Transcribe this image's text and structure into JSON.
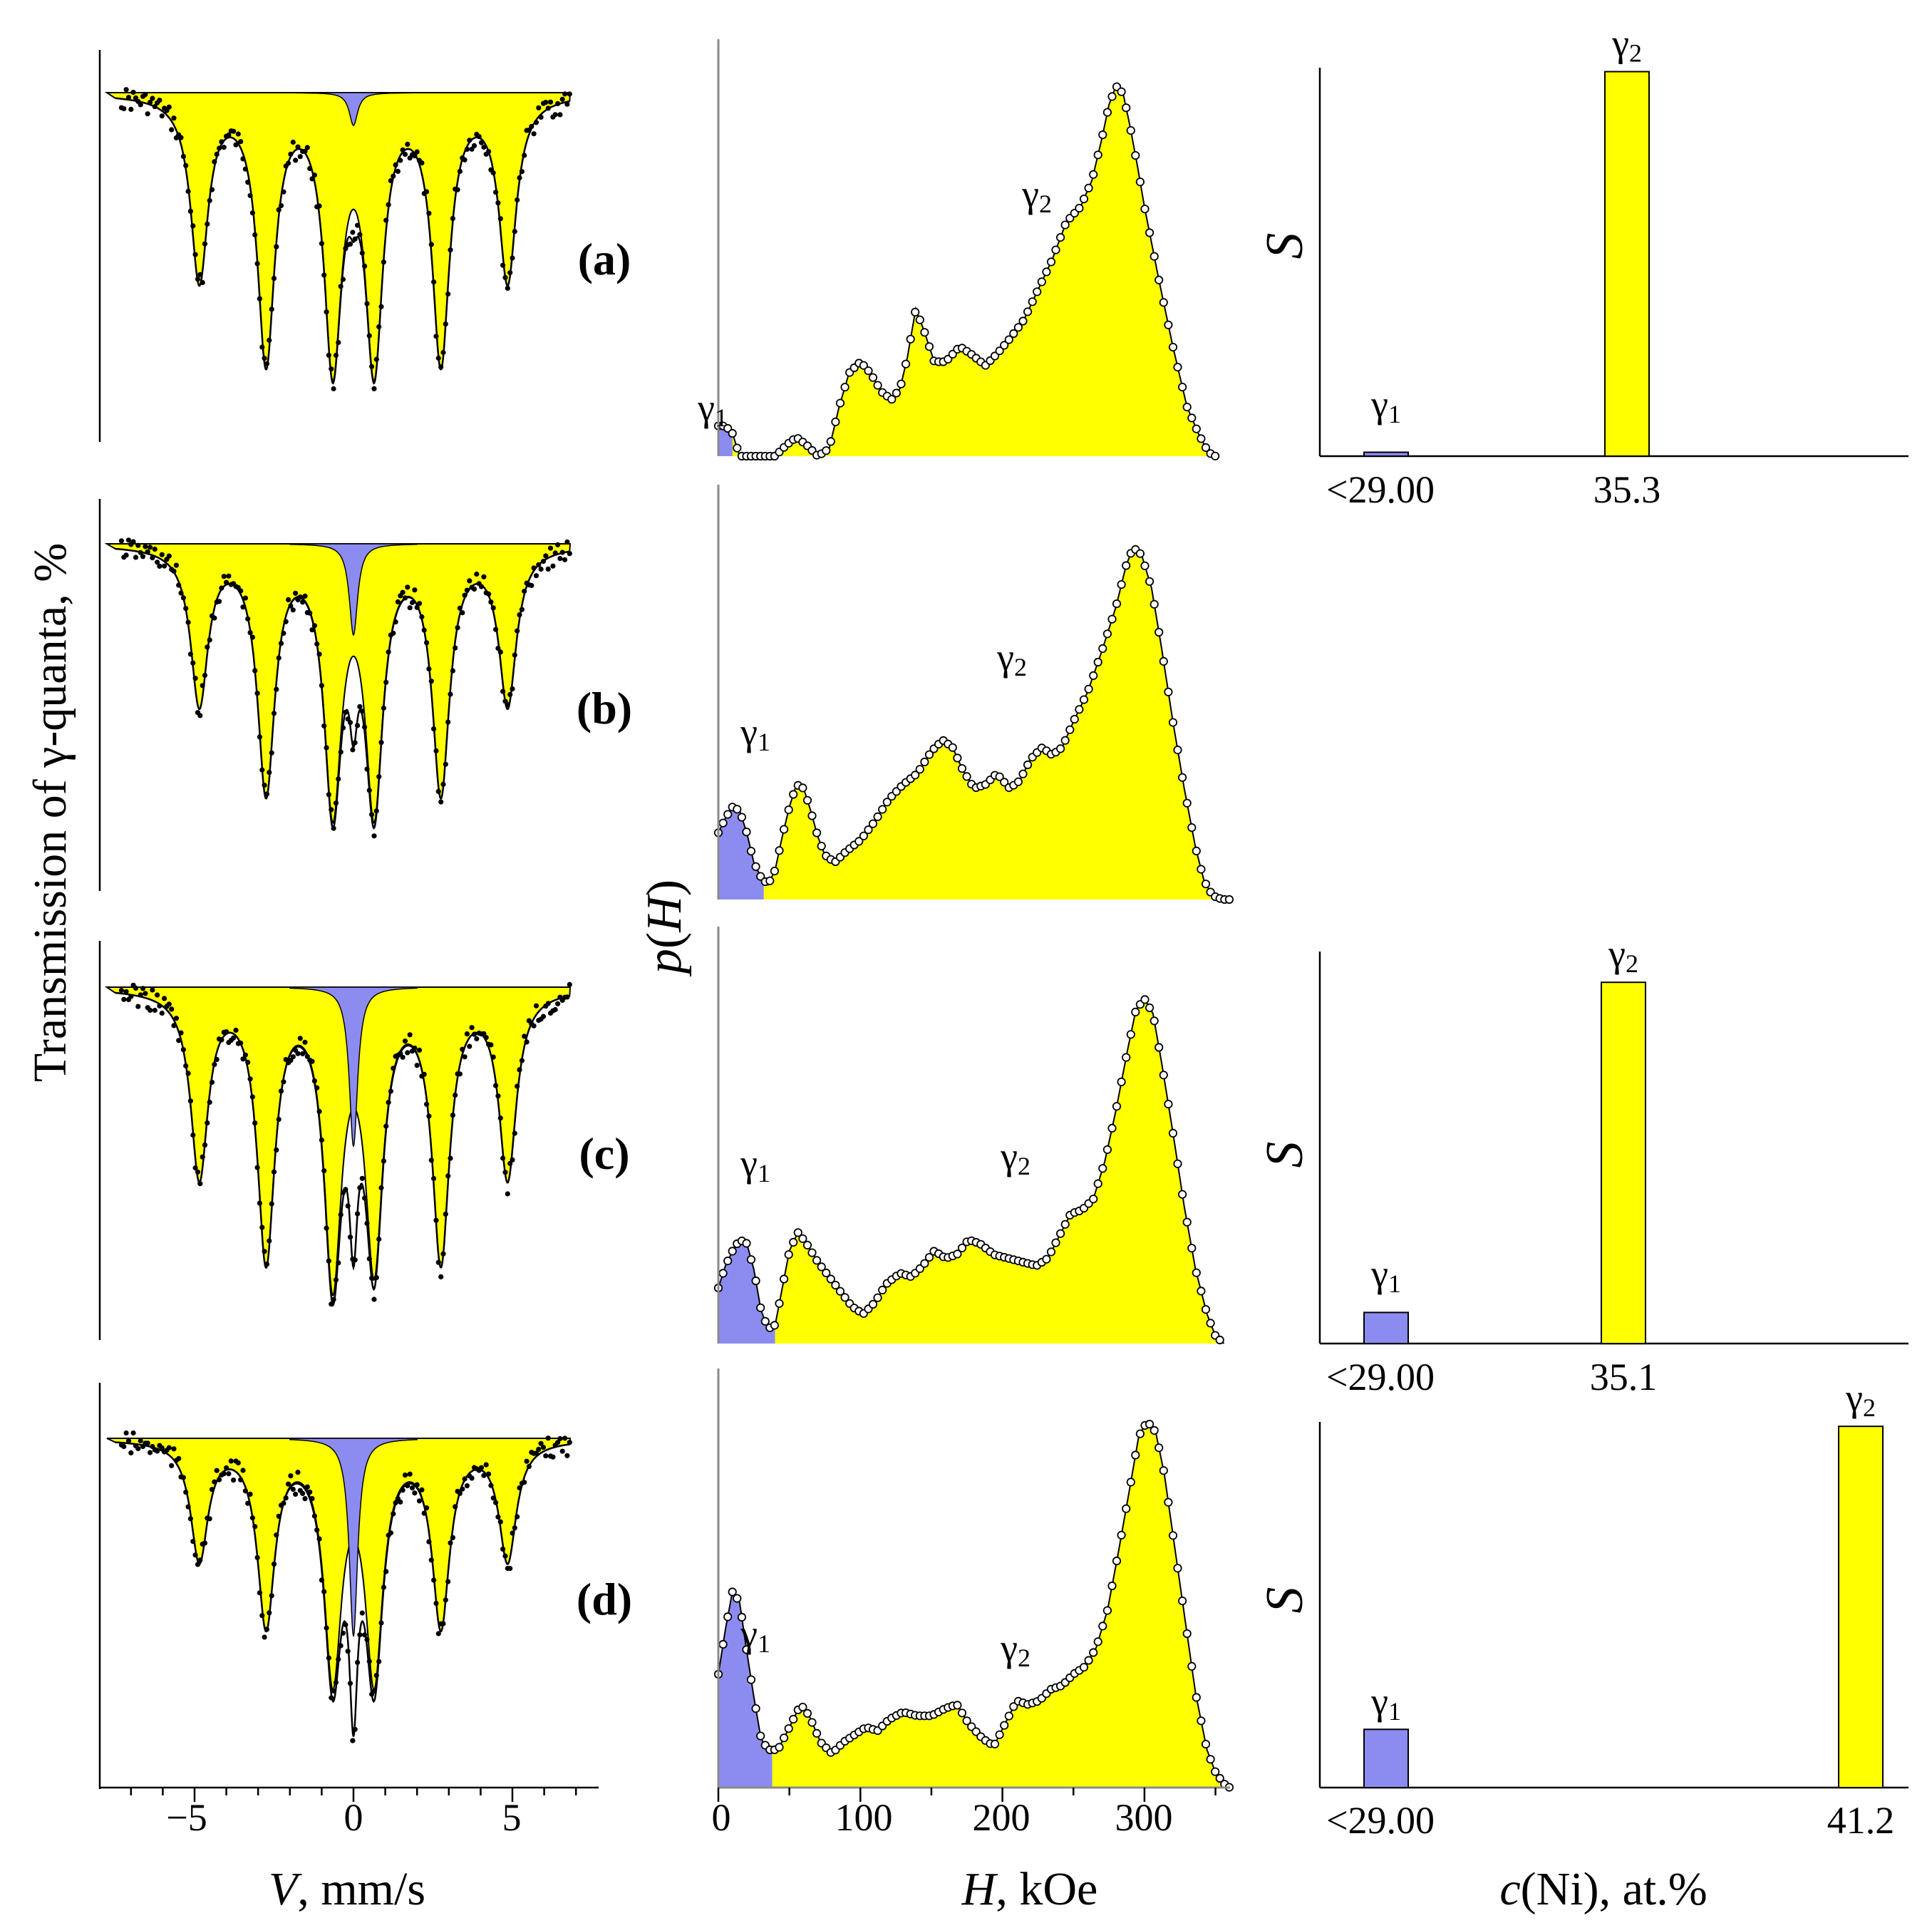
{
  "figure": {
    "left_ylabel": "Transmission of γ-quanta, %",
    "left_xlabel_var": "V",
    "left_xlabel_unit": ", mm/s",
    "left_xticks": [
      "−5",
      "0",
      "5"
    ],
    "mid_ylabel_var": "p",
    "mid_ylabel_arg": "H",
    "mid_xlabel_var": "H",
    "mid_xlabel_unit": ", kOe",
    "mid_xticks": [
      "0",
      "100",
      "200",
      "300"
    ],
    "right_ylabel": "S",
    "right_xlabel_var": "c",
    "right_xlabel_unit": "(Ni), at.%",
    "gamma1_base": "γ",
    "gamma1_sub": "1",
    "gamma2_base": "γ",
    "gamma2_sub": "2",
    "colors": {
      "gamma1": "#8c8cf0",
      "gamma2": "#ffff00",
      "axis": "#8a8a8a",
      "line": "#000000"
    }
  },
  "chart_data": [
    {
      "type": "line",
      "panel": "(a)",
      "role": "Mossbauer spectrum",
      "xlabel": "V, mm/s",
      "ylabel": "Transmission of γ-quanta, %",
      "xlim": [
        -7.5,
        7.5
      ],
      "components": [
        {
          "name": "γ2 sextet",
          "color": "#ffff00",
          "line_positions": [
            -4.85,
            -2.75,
            -0.65,
            0.65,
            2.75,
            4.85
          ],
          "depths": [
            0.56,
            0.8,
            0.8,
            0.8,
            0.8,
            0.56
          ]
        },
        {
          "name": "γ1 singlet",
          "color": "#8c8cf0",
          "position": 0.0,
          "depth": 0.1
        }
      ]
    },
    {
      "type": "line",
      "panel": "(b)",
      "role": "Mossbauer spectrum",
      "xlabel": "V, mm/s",
      "ylabel": "Transmission of γ-quanta, %",
      "xlim": [
        -7.5,
        7.5
      ],
      "components": [
        {
          "name": "γ2 sextet",
          "color": "#ffff00",
          "line_positions": [
            -4.85,
            -2.75,
            -0.65,
            0.65,
            2.75,
            4.85
          ],
          "depths": [
            0.48,
            0.74,
            0.78,
            0.78,
            0.74,
            0.48
          ]
        },
        {
          "name": "γ1 singlet",
          "color": "#8c8cf0",
          "position": 0.0,
          "depth": 0.28
        }
      ]
    },
    {
      "type": "line",
      "panel": "(c)",
      "role": "Mossbauer spectrum",
      "xlabel": "V, mm/s",
      "ylabel": "Transmission of γ-quanta, %",
      "xlim": [
        -7.5,
        7.5
      ],
      "components": [
        {
          "name": "γ2 sextet",
          "color": "#ffff00",
          "line_positions": [
            -4.85,
            -2.75,
            -0.65,
            0.65,
            2.75,
            4.85
          ],
          "depths": [
            0.56,
            0.8,
            0.85,
            0.8,
            0.8,
            0.56
          ]
        },
        {
          "name": "γ1 singlet",
          "color": "#8c8cf0",
          "position": 0.0,
          "depth": 0.48
        }
      ]
    },
    {
      "type": "line",
      "panel": "(d)",
      "role": "Mossbauer spectrum",
      "xlabel": "V, mm/s",
      "ylabel": "Transmission of γ-quanta, %",
      "xlim": [
        -7.5,
        7.5
      ],
      "components": [
        {
          "name": "γ2 sextet",
          "color": "#ffff00",
          "line_positions": [
            -4.85,
            -2.75,
            -0.65,
            0.65,
            2.75,
            4.85
          ],
          "depths": [
            0.36,
            0.55,
            0.7,
            0.7,
            0.55,
            0.36
          ]
        },
        {
          "name": "γ1 singlet",
          "color": "#8c8cf0",
          "position": 0.0,
          "depth": 0.6
        }
      ]
    },
    {
      "type": "area",
      "panel": "(a)",
      "role": "hyperfine field distribution",
      "xlabel": "H, kOe",
      "ylabel": "p(H)",
      "xlim": [
        0,
        360
      ],
      "ylim": [
        0,
        1.0
      ],
      "gamma1_max_H": 10,
      "points": [
        [
          0,
          0.08
        ],
        [
          5,
          0.08
        ],
        [
          10,
          0.06
        ],
        [
          15,
          0.0
        ],
        [
          20,
          0.0
        ],
        [
          30,
          0.0
        ],
        [
          40,
          0.0
        ],
        [
          48,
          0.03
        ],
        [
          55,
          0.05
        ],
        [
          62,
          0.03
        ],
        [
          70,
          0.0
        ],
        [
          78,
          0.02
        ],
        [
          85,
          0.13
        ],
        [
          92,
          0.22
        ],
        [
          100,
          0.25
        ],
        [
          107,
          0.22
        ],
        [
          115,
          0.17
        ],
        [
          122,
          0.15
        ],
        [
          128,
          0.18
        ],
        [
          133,
          0.26
        ],
        [
          139,
          0.39
        ],
        [
          145,
          0.33
        ],
        [
          152,
          0.25
        ],
        [
          160,
          0.25
        ],
        [
          170,
          0.29
        ],
        [
          178,
          0.27
        ],
        [
          188,
          0.24
        ],
        [
          196,
          0.27
        ],
        [
          205,
          0.31
        ],
        [
          215,
          0.36
        ],
        [
          225,
          0.44
        ],
        [
          235,
          0.52
        ],
        [
          245,
          0.62
        ],
        [
          255,
          0.66
        ],
        [
          263,
          0.73
        ],
        [
          270,
          0.84
        ],
        [
          275,
          0.93
        ],
        [
          280,
          0.98
        ],
        [
          285,
          0.96
        ],
        [
          290,
          0.87
        ],
        [
          295,
          0.77
        ],
        [
          300,
          0.66
        ],
        [
          310,
          0.47
        ],
        [
          320,
          0.29
        ],
        [
          330,
          0.13
        ],
        [
          338,
          0.06
        ],
        [
          345,
          0.01
        ],
        [
          350,
          0.0
        ]
      ]
    },
    {
      "type": "area",
      "panel": "(b)",
      "role": "hyperfine field distribution",
      "xlabel": "H, kOe",
      "ylabel": "p(H)",
      "xlim": [
        0,
        360
      ],
      "ylim": [
        0,
        1.0
      ],
      "gamma1_max_H": 32,
      "points": [
        [
          0,
          0.18
        ],
        [
          5,
          0.22
        ],
        [
          10,
          0.25
        ],
        [
          15,
          0.24
        ],
        [
          20,
          0.18
        ],
        [
          25,
          0.1
        ],
        [
          30,
          0.06
        ],
        [
          35,
          0.04
        ],
        [
          40,
          0.08
        ],
        [
          45,
          0.17
        ],
        [
          50,
          0.25
        ],
        [
          55,
          0.31
        ],
        [
          60,
          0.3
        ],
        [
          65,
          0.24
        ],
        [
          70,
          0.17
        ],
        [
          75,
          0.12
        ],
        [
          82,
          0.1
        ],
        [
          90,
          0.13
        ],
        [
          100,
          0.16
        ],
        [
          110,
          0.21
        ],
        [
          120,
          0.27
        ],
        [
          130,
          0.31
        ],
        [
          140,
          0.34
        ],
        [
          150,
          0.4
        ],
        [
          158,
          0.43
        ],
        [
          165,
          0.41
        ],
        [
          172,
          0.35
        ],
        [
          180,
          0.3
        ],
        [
          188,
          0.31
        ],
        [
          196,
          0.34
        ],
        [
          205,
          0.3
        ],
        [
          212,
          0.32
        ],
        [
          220,
          0.38
        ],
        [
          228,
          0.41
        ],
        [
          235,
          0.39
        ],
        [
          242,
          0.41
        ],
        [
          250,
          0.48
        ],
        [
          260,
          0.56
        ],
        [
          270,
          0.67
        ],
        [
          280,
          0.79
        ],
        [
          287,
          0.9
        ],
        [
          292,
          0.95
        ],
        [
          298,
          0.93
        ],
        [
          305,
          0.84
        ],
        [
          312,
          0.68
        ],
        [
          320,
          0.48
        ],
        [
          328,
          0.3
        ],
        [
          336,
          0.14
        ],
        [
          342,
          0.05
        ],
        [
          348,
          0.01
        ],
        [
          355,
          0.0
        ],
        [
          360,
          0.0
        ]
      ]
    },
    {
      "type": "area",
      "panel": "(c)",
      "role": "hyperfine field distribution",
      "xlabel": "H, kOe",
      "ylabel": "p(H)",
      "xlim": [
        0,
        360
      ],
      "ylim": [
        0,
        1.0
      ],
      "gamma1_max_H": 40,
      "points": [
        [
          0,
          0.15
        ],
        [
          5,
          0.21
        ],
        [
          10,
          0.25
        ],
        [
          15,
          0.28
        ],
        [
          20,
          0.27
        ],
        [
          25,
          0.2
        ],
        [
          30,
          0.09
        ],
        [
          35,
          0.04
        ],
        [
          40,
          0.05
        ],
        [
          45,
          0.15
        ],
        [
          50,
          0.25
        ],
        [
          56,
          0.3
        ],
        [
          62,
          0.27
        ],
        [
          70,
          0.22
        ],
        [
          78,
          0.18
        ],
        [
          86,
          0.14
        ],
        [
          94,
          0.1
        ],
        [
          102,
          0.08
        ],
        [
          110,
          0.11
        ],
        [
          118,
          0.16
        ],
        [
          128,
          0.19
        ],
        [
          136,
          0.18
        ],
        [
          144,
          0.21
        ],
        [
          152,
          0.25
        ],
        [
          160,
          0.23
        ],
        [
          168,
          0.24
        ],
        [
          176,
          0.28
        ],
        [
          184,
          0.27
        ],
        [
          194,
          0.24
        ],
        [
          204,
          0.23
        ],
        [
          214,
          0.22
        ],
        [
          224,
          0.21
        ],
        [
          232,
          0.23
        ],
        [
          240,
          0.29
        ],
        [
          248,
          0.35
        ],
        [
          256,
          0.36
        ],
        [
          264,
          0.39
        ],
        [
          272,
          0.49
        ],
        [
          280,
          0.63
        ],
        [
          288,
          0.79
        ],
        [
          294,
          0.9
        ],
        [
          300,
          0.93
        ],
        [
          306,
          0.89
        ],
        [
          312,
          0.76
        ],
        [
          320,
          0.57
        ],
        [
          328,
          0.37
        ],
        [
          336,
          0.2
        ],
        [
          344,
          0.08
        ],
        [
          350,
          0.02
        ],
        [
          356,
          0.0
        ]
      ]
    },
    {
      "type": "area",
      "panel": "(d)",
      "role": "hyperfine field distribution",
      "xlabel": "H, kOe",
      "ylabel": "p(H)",
      "xlim": [
        0,
        360
      ],
      "ylim": [
        0,
        1.0
      ],
      "gamma1_max_H": 38,
      "points": [
        [
          0,
          0.3
        ],
        [
          5,
          0.42
        ],
        [
          10,
          0.52
        ],
        [
          15,
          0.49
        ],
        [
          20,
          0.36
        ],
        [
          25,
          0.24
        ],
        [
          30,
          0.13
        ],
        [
          35,
          0.1
        ],
        [
          42,
          0.1
        ],
        [
          50,
          0.16
        ],
        [
          58,
          0.22
        ],
        [
          64,
          0.19
        ],
        [
          72,
          0.12
        ],
        [
          80,
          0.09
        ],
        [
          88,
          0.12
        ],
        [
          96,
          0.14
        ],
        [
          104,
          0.16
        ],
        [
          112,
          0.15
        ],
        [
          120,
          0.18
        ],
        [
          130,
          0.2
        ],
        [
          140,
          0.19
        ],
        [
          150,
          0.19
        ],
        [
          160,
          0.21
        ],
        [
          168,
          0.22
        ],
        [
          176,
          0.17
        ],
        [
          186,
          0.13
        ],
        [
          194,
          0.11
        ],
        [
          202,
          0.17
        ],
        [
          210,
          0.23
        ],
        [
          218,
          0.22
        ],
        [
          226,
          0.23
        ],
        [
          234,
          0.26
        ],
        [
          242,
          0.27
        ],
        [
          250,
          0.3
        ],
        [
          258,
          0.32
        ],
        [
          266,
          0.37
        ],
        [
          274,
          0.47
        ],
        [
          282,
          0.63
        ],
        [
          290,
          0.8
        ],
        [
          296,
          0.93
        ],
        [
          302,
          0.97
        ],
        [
          308,
          0.94
        ],
        [
          314,
          0.83
        ],
        [
          320,
          0.67
        ],
        [
          328,
          0.46
        ],
        [
          336,
          0.25
        ],
        [
          344,
          0.1
        ],
        [
          350,
          0.04
        ],
        [
          356,
          0.01
        ],
        [
          360,
          0.0
        ]
      ]
    },
    {
      "type": "bar",
      "panel": "(a)",
      "role": "phase concentration",
      "xlabel": "c(Ni), at.%",
      "ylabel": "S",
      "ylim": [
        0,
        1.0
      ],
      "bars": [
        {
          "label": "<29.00",
          "phase": "γ1",
          "value": 0.01,
          "color": "#8c8cf0"
        },
        {
          "label": "35.3",
          "phase": "γ2",
          "value": 0.99,
          "color": "#ffff00"
        }
      ]
    },
    {
      "type": "bar",
      "panel": "(c)",
      "role": "phase concentration",
      "xlabel": "c(Ni), at.%",
      "ylabel": "S",
      "ylim": [
        0,
        1.0
      ],
      "bars": [
        {
          "label": "<29.00",
          "phase": "γ1",
          "value": 0.08,
          "color": "#8c8cf0"
        },
        {
          "label": "35.1",
          "phase": "γ2",
          "value": 0.93,
          "color": "#ffff00"
        }
      ]
    },
    {
      "type": "bar",
      "panel": "(d)",
      "role": "phase concentration",
      "xlabel": "c(Ni), at.%",
      "ylabel": "S",
      "ylim": [
        0,
        1.0
      ],
      "bars": [
        {
          "label": "<29.00",
          "phase": "γ1",
          "value": 0.15,
          "color": "#8c8cf0"
        },
        {
          "label": "41.2",
          "phase": "γ2",
          "value": 0.93,
          "color": "#ffff00"
        }
      ]
    }
  ]
}
